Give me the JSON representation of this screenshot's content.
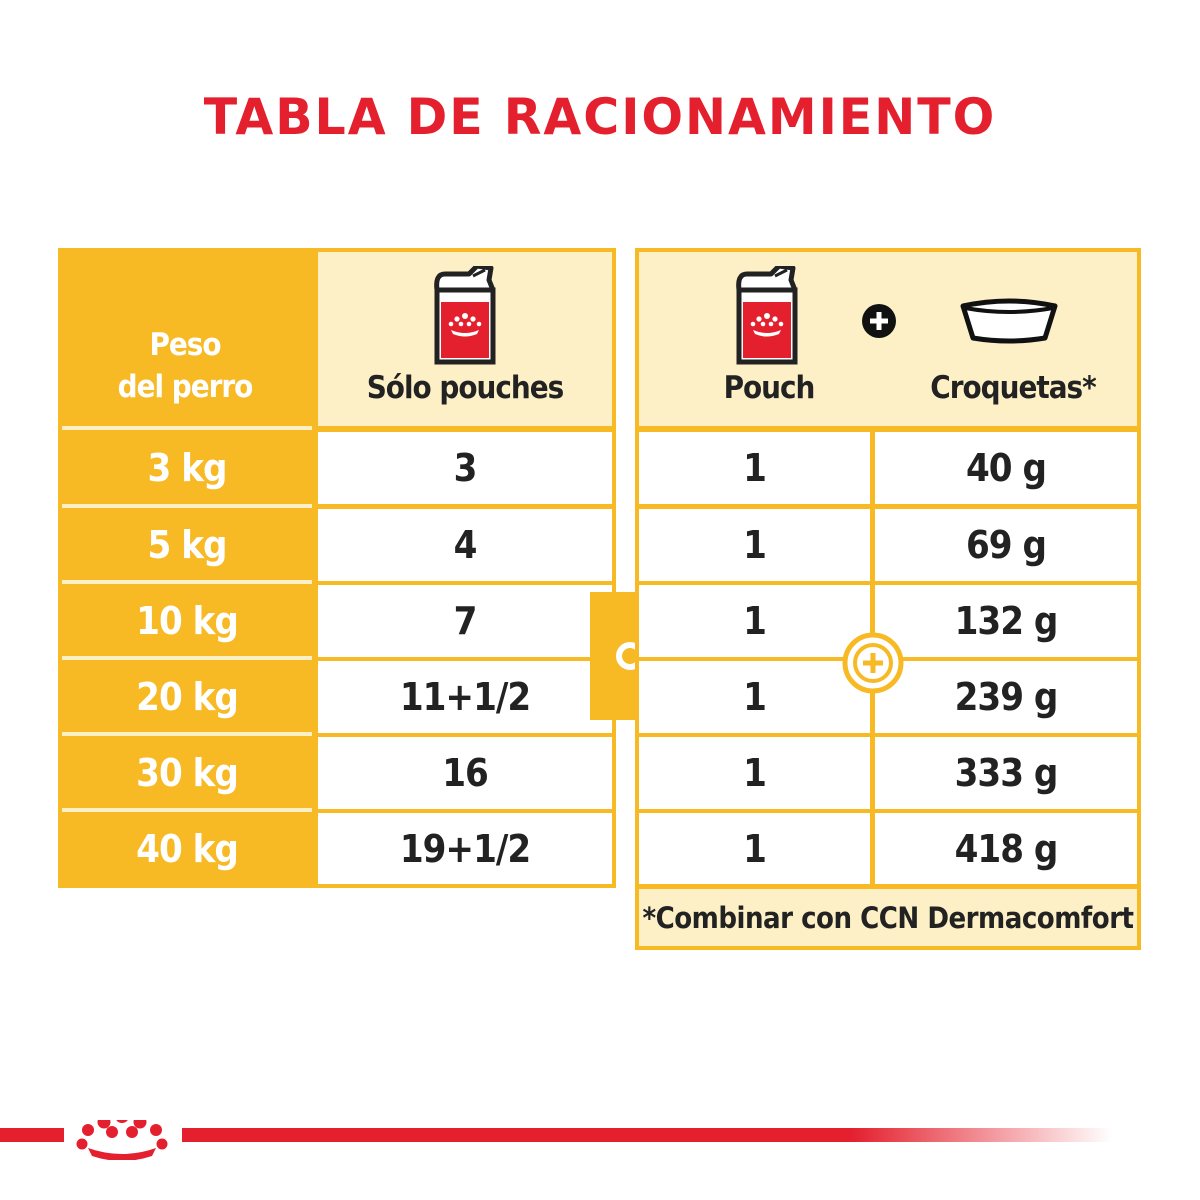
{
  "title": "TABLA DE RACIONAMIENTO",
  "left_table": {
    "header_weight_line1": "Peso",
    "header_weight_line2": "del perro",
    "header_pouch_label": "Sólo pouches",
    "rows": [
      {
        "weight": "3 kg",
        "pouches": "3"
      },
      {
        "weight": "5 kg",
        "pouches": "4"
      },
      {
        "weight": "10 kg",
        "pouches": "7"
      },
      {
        "weight": "20 kg",
        "pouches": "11+1/2"
      },
      {
        "weight": "30 kg",
        "pouches": "16"
      },
      {
        "weight": "40 kg",
        "pouches": "19+1/2"
      }
    ]
  },
  "connector_label": "o",
  "right_table": {
    "header_pouch_label": "Pouch",
    "header_kibble_label": "Croquetas*",
    "rows": [
      {
        "pouch": "1",
        "kibble": "40 g"
      },
      {
        "pouch": "1",
        "kibble": "69 g"
      },
      {
        "pouch": "1",
        "kibble": "132 g"
      },
      {
        "pouch": "1",
        "kibble": "239 g"
      },
      {
        "pouch": "1",
        "kibble": "333 g"
      },
      {
        "pouch": "1",
        "kibble": "418 g"
      }
    ],
    "footnote": "*Combinar con CCN Dermacomfort"
  },
  "icons": {
    "pouch": "pouch-icon",
    "bowl": "kibble-bowl-icon",
    "plus": "plus-icon",
    "crown": "royal-crown-icon"
  },
  "colors": {
    "accent_yellow": "#f7b924",
    "cream": "#fdf0c6",
    "brand_red": "#e4202e"
  }
}
